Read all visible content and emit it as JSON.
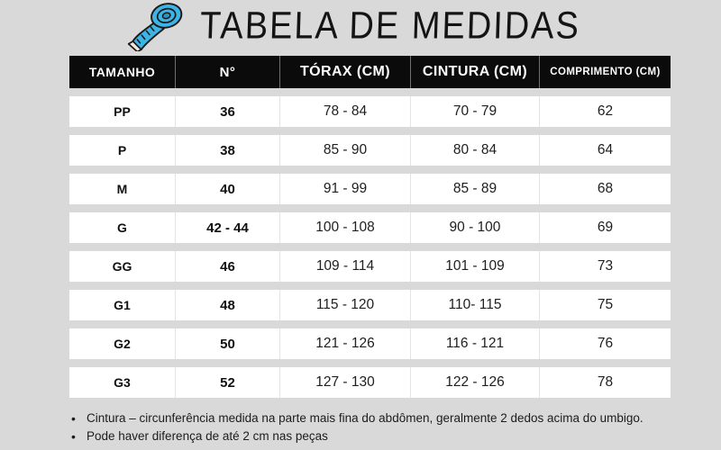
{
  "page": {
    "background_color": "#d9d9d9"
  },
  "header": {
    "title": "TABELA DE MEDIDAS",
    "icon": "measuring-tape-icon",
    "icon_color": "#3cb4e5"
  },
  "table": {
    "header_bg": "#0b0b0b",
    "header_text_color": "#ffffff",
    "row_bg": "#ffffff",
    "columns": [
      {
        "key": "tamanho",
        "label": "TAMANHO"
      },
      {
        "key": "numero",
        "label": "N°"
      },
      {
        "key": "torax",
        "label": "TÓRAX (CM)"
      },
      {
        "key": "cintura",
        "label": "CINTURA (CM)"
      },
      {
        "key": "comprimento",
        "label": "COMPRIMENTO (CM)"
      }
    ],
    "rows": [
      {
        "tamanho": "PP",
        "numero": "36",
        "torax": "78 - 84",
        "cintura": "70 - 79",
        "comprimento": "62"
      },
      {
        "tamanho": "P",
        "numero": "38",
        "torax": "85 - 90",
        "cintura": "80 - 84",
        "comprimento": "64"
      },
      {
        "tamanho": "M",
        "numero": "40",
        "torax": "91 - 99",
        "cintura": "85 - 89",
        "comprimento": "68"
      },
      {
        "tamanho": "G",
        "numero": "42 - 44",
        "torax": "100 - 108",
        "cintura": "90 - 100",
        "comprimento": "69"
      },
      {
        "tamanho": "GG",
        "numero": "46",
        "torax": "109 - 114",
        "cintura": "101 - 109",
        "comprimento": "73"
      },
      {
        "tamanho": "G1",
        "numero": "48",
        "torax": "115 - 120",
        "cintura": "110- 115",
        "comprimento": "75"
      },
      {
        "tamanho": "G2",
        "numero": "50",
        "torax": "121 - 126",
        "cintura": "116 - 121",
        "comprimento": "76"
      },
      {
        "tamanho": "G3",
        "numero": "52",
        "torax": "127 - 130",
        "cintura": "122 - 126",
        "comprimento": "78"
      }
    ]
  },
  "notes": {
    "items": [
      "Cintura – circunferência medida na parte mais fina do abdômen, geralmente 2 dedos acima do umbigo.",
      "Pode haver diferença de até 2 cm nas peças"
    ]
  },
  "chart_data": {
    "type": "table",
    "title": "TABELA DE MEDIDAS",
    "columns": [
      "TAMANHO",
      "N°",
      "TÓRAX (CM)",
      "CINTURA (CM)",
      "COMPRIMENTO (CM)"
    ],
    "rows": [
      [
        "PP",
        "36",
        "78 - 84",
        "70 - 79",
        "62"
      ],
      [
        "P",
        "38",
        "85 - 90",
        "80 - 84",
        "64"
      ],
      [
        "M",
        "40",
        "91 - 99",
        "85 - 89",
        "68"
      ],
      [
        "G",
        "42 - 44",
        "100 - 108",
        "90 - 100",
        "69"
      ],
      [
        "GG",
        "46",
        "109 - 114",
        "101 - 109",
        "73"
      ],
      [
        "G1",
        "48",
        "115 - 120",
        "110- 115",
        "75"
      ],
      [
        "G2",
        "50",
        "121 - 126",
        "116 - 121",
        "76"
      ],
      [
        "G3",
        "52",
        "127 - 130",
        "122 - 126",
        "78"
      ]
    ],
    "notes": [
      "Cintura – circunferência medida na parte mais fina do abdômen, geralmente 2 dedos acima do umbigo.",
      "Pode haver diferença de até 2 cm nas peças"
    ]
  }
}
